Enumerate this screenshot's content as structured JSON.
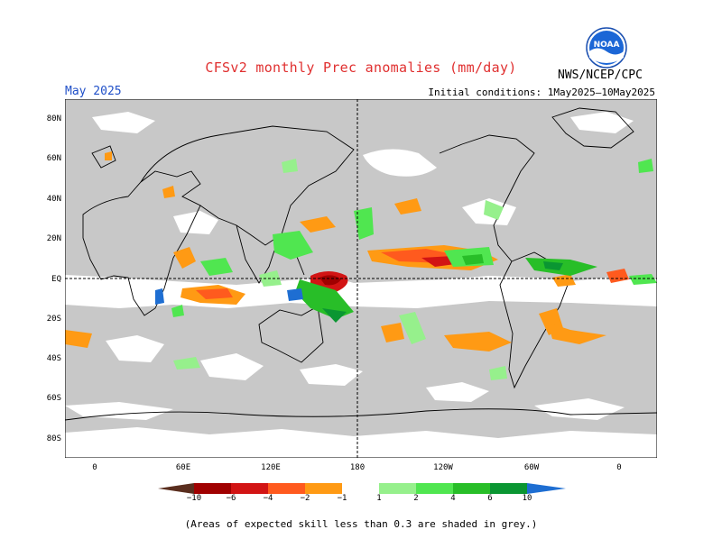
{
  "header": {
    "title": "CFSv2 monthly Prec anomalies (mm/day)",
    "month": "May 2025",
    "initial_conditions": "Initial conditions: 1May2025–10May2025",
    "agency": "NWS/NCEP/CPC",
    "logo_text": "NOAA"
  },
  "map": {
    "lat_labels": [
      "80N",
      "60N",
      "40N",
      "20N",
      "EQ",
      "20S",
      "40S",
      "60S",
      "80S"
    ],
    "lon_labels": [
      "0",
      "60E",
      "120E",
      "180",
      "120W",
      "60W",
      "0"
    ],
    "land_color": "#ffffff",
    "low_skill_color": "#c8c8c8",
    "coastline_color": "#000000"
  },
  "legend": {
    "labels": [
      "−10",
      "−6",
      "−4",
      "−2",
      "−1",
      "1",
      "2",
      "4",
      "6",
      "10"
    ],
    "dry_colors": [
      "#5a2e1e",
      "#a00000",
      "#d21414",
      "#ff5a1e",
      "#ff9a14"
    ],
    "wet_colors": [
      "#96f08c",
      "#50e650",
      "#28be28",
      "#0a9632",
      "#1e6ed2"
    ]
  },
  "footnote": "(Areas of expected skill less than 0.3 are shaded in grey.)"
}
